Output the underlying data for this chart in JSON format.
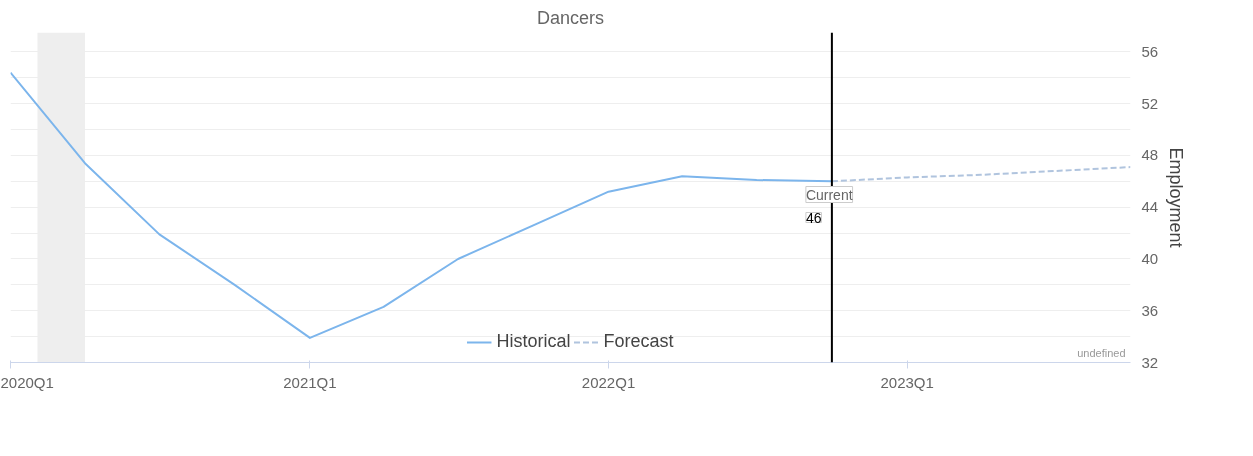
{
  "chart_data": {
    "type": "line",
    "title": "Dancers",
    "ylabel": "Employment",
    "x": [
      "2020-01",
      "2020-04",
      "2020-07",
      "2020-10",
      "2021-01",
      "2021-04",
      "2021-07",
      "2021-10",
      "2022-01",
      "2022-04",
      "2022-07",
      "2022-10"
    ],
    "series": [
      {
        "name": "Historical",
        "color": "#7cb5ec",
        "line_style": "solid",
        "values": [
          54.4,
          47.4,
          41.9,
          38.0,
          33.9,
          36.3,
          40.0,
          42.6,
          45.2,
          46.4,
          46.1,
          46.0
        ]
      },
      {
        "name": "Forecast",
        "color": "#b0c4de",
        "line_style": "dashed",
        "x": [
          "2022-10",
          "2023-01",
          "2023-04",
          "2023-07",
          "2023-10"
        ],
        "values": [
          46.0,
          46.3,
          46.5,
          46.8,
          47.1
        ]
      }
    ],
    "xlim": [
      "2020-01",
      "2023-10"
    ],
    "xticks": [
      {
        "value": "2020-01",
        "label": "2020Q1"
      },
      {
        "value": "2021-01",
        "label": "2021Q1"
      },
      {
        "value": "2022-01",
        "label": "2022Q1"
      },
      {
        "value": "2023-01",
        "label": "2023Q1"
      }
    ],
    "ylim": [
      32,
      57.5
    ],
    "yticks": [
      32,
      {
        "value": 34,
        "label": null
      },
      36,
      {
        "value": 38,
        "label": null
      },
      40,
      {
        "value": 42,
        "label": null
      },
      44,
      {
        "value": 46,
        "label": null
      },
      48,
      {
        "value": 50,
        "label": null
      },
      52,
      {
        "value": 54,
        "label": null
      },
      56
    ],
    "grid": "y",
    "legend": "bottom",
    "marker": "none",
    "bands": [
      {
        "axis": "x",
        "from": "2020-02-03",
        "to": "2020-04-01",
        "color": "#eeeeee"
      }
    ],
    "ref_lines": [
      {
        "axis": "x",
        "value": "2022-10",
        "label": "Current",
        "color": "#000000"
      }
    ],
    "annotations": [
      "46",
      "undefined"
    ]
  }
}
